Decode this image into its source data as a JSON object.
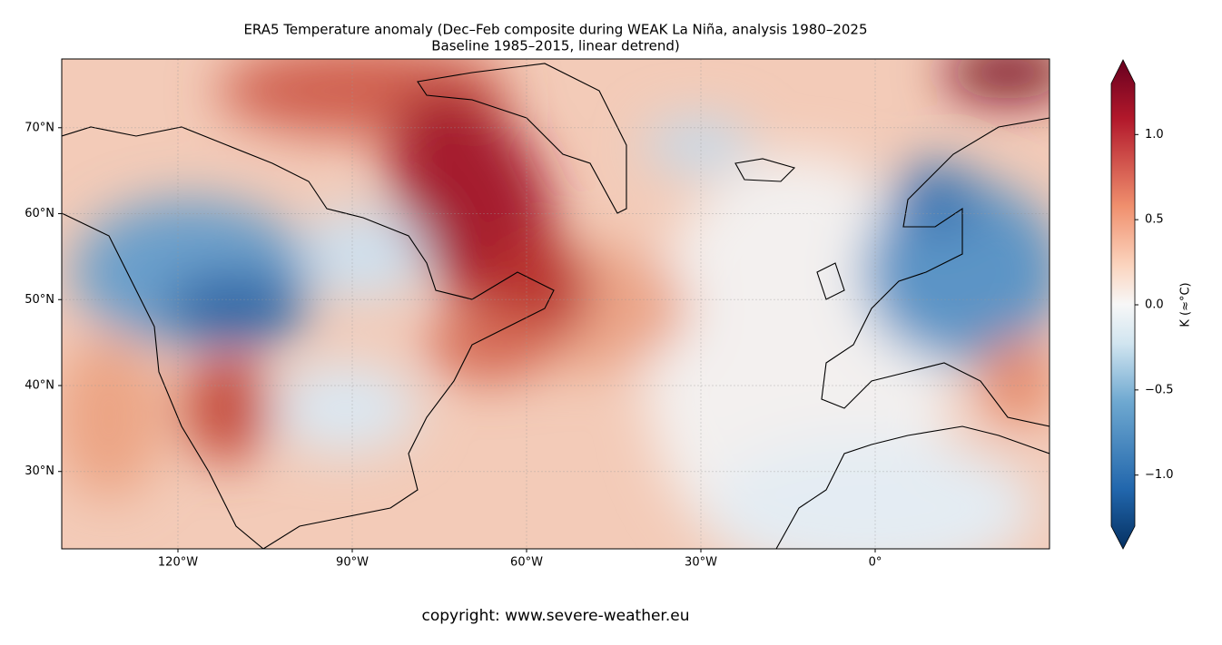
{
  "title": [
    "ERA5 Temperature anomaly (Dec–Feb composite during WEAK La Niña, analysis 1980–2025",
    "Baseline 1985–2015, linear detrend)"
  ],
  "map": {
    "xlim": [
      -140,
      30
    ],
    "ylim": [
      21,
      78
    ],
    "xticks": [
      {
        "value": -120,
        "label": "120°W"
      },
      {
        "value": -90,
        "label": "90°W"
      },
      {
        "value": -60,
        "label": "60°W"
      },
      {
        "value": -30,
        "label": "30°W"
      },
      {
        "value": 0,
        "label": "0°"
      }
    ],
    "yticks": [
      {
        "value": 30,
        "label": "30°N"
      },
      {
        "value": 40,
        "label": "40°N"
      },
      {
        "value": 50,
        "label": "50°N"
      },
      {
        "value": 60,
        "label": "60°N"
      },
      {
        "value": 70,
        "label": "70°N"
      }
    ],
    "grid": true
  },
  "colorbar": {
    "label": "K (≈°C)",
    "clim": [
      -1.3,
      1.3
    ],
    "ticks": [
      {
        "value": 1,
        "label": "1.0"
      },
      0.5,
      {
        "value": 0,
        "label": "0.0"
      },
      {
        "value": -0.5,
        "label": "−0.5"
      },
      {
        "value": -1,
        "label": "−1.0"
      }
    ]
  },
  "copyright": "copyright: www.severe-weather.eu"
}
